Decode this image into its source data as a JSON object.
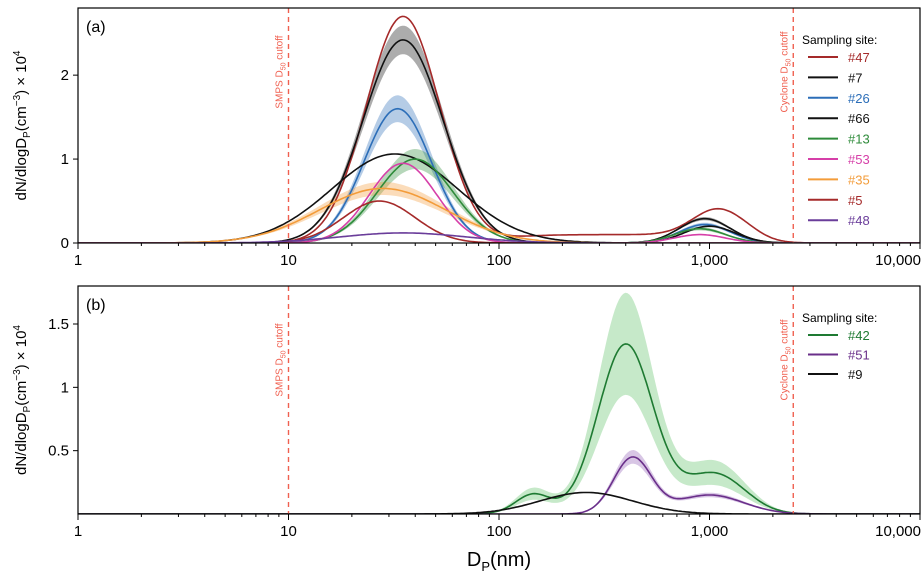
{
  "chart_data": [
    {
      "type": "line",
      "panel": "(a)",
      "xscale": "log",
      "xlim": [
        1,
        10000
      ],
      "ylim": [
        0,
        2.8
      ],
      "xticks": [
        1,
        10,
        100,
        1000,
        10000
      ],
      "xtick_labels": [
        "1",
        "10",
        "100",
        "1,000",
        "10,000"
      ],
      "yticks": [
        0,
        1,
        2
      ],
      "ytick_labels": [
        "0",
        "1",
        "2"
      ],
      "ylabel": "dN/dlogD_P(cm^-3) × 10^4",
      "ylabel_parts": {
        "a": "dN",
        "b": "/",
        "c": "dlogD",
        "d": "P",
        "e": "(cm",
        "f": "−3",
        "g": ")",
        "h": "×",
        "i": "10",
        "j": "4"
      },
      "cutoff_lines": [
        {
          "x": 10,
          "label_main": "SMPS D",
          "label_sub": "50",
          "label_tail": " cutoff",
          "color": "#f06050"
        },
        {
          "x": 2500,
          "label_main": "Cyclone D",
          "label_sub": "50",
          "label_tail": " cutoff",
          "color": "#f06050"
        }
      ],
      "legend_title": "Sampling site:",
      "legend_position": "right",
      "series": [
        {
          "name": "#47",
          "color": "#a52a2a",
          "modes": [
            [
              2.7,
              35,
              0.175
            ],
            [
              0.31,
              1100,
              0.12
            ]
          ],
          "background": 0.1,
          "band": 0
        },
        {
          "name": "#7",
          "color": "#111111",
          "modes": [
            [
              2.42,
              35,
              0.19
            ],
            [
              0.29,
              950,
              0.12
            ]
          ],
          "background": 0,
          "band": 0.07
        },
        {
          "name": "#26",
          "color": "#2c6eb8",
          "modes": [
            [
              1.6,
              33,
              0.16
            ],
            [
              0.22,
              950,
              0.12
            ]
          ],
          "background": 0,
          "band": 0.1
        },
        {
          "name": "#66",
          "color": "#111111",
          "modes": [
            [
              1.06,
              32,
              0.3
            ],
            [
              0.2,
              1000,
              0.12
            ]
          ],
          "background": 0,
          "band": 0
        },
        {
          "name": "#13",
          "color": "#2e8b3a",
          "modes": [
            [
              1.0,
              40,
              0.18
            ],
            [
              0.17,
              900,
              0.12
            ]
          ],
          "background": 0,
          "band": 0.12
        },
        {
          "name": "#53",
          "color": "#d63fa8",
          "modes": [
            [
              0.95,
              35,
              0.16
            ],
            [
              0.1,
              900,
              0.12
            ]
          ],
          "background": 0,
          "band": 0
        },
        {
          "name": "#35",
          "color": "#f39c3a",
          "modes": [
            [
              0.65,
              28,
              0.3
            ]
          ],
          "background": 0,
          "band": 0.12
        },
        {
          "name": "#5",
          "color": "#a52a2a",
          "modes": [
            [
              0.5,
              27,
              0.17
            ]
          ],
          "background": 0,
          "band": 0
        },
        {
          "name": "#48",
          "color": "#6a3d9a",
          "modes": [
            [
              0.12,
              35,
              0.3
            ]
          ],
          "background": 0,
          "band": 0.06
        }
      ]
    },
    {
      "type": "line",
      "panel": "(b)",
      "xscale": "log",
      "xlim": [
        1,
        10000
      ],
      "ylim": [
        0,
        1.8
      ],
      "xticks": [
        1,
        10,
        100,
        1000,
        10000
      ],
      "xtick_labels": [
        "1",
        "10",
        "100",
        "1,000",
        "10,000"
      ],
      "yticks": [
        0.5,
        1,
        1.5
      ],
      "ytick_labels": [
        "0.5",
        "1",
        "1.5"
      ],
      "xlabel_main": "D",
      "xlabel_sub": "P",
      "xlabel_tail": "(nm)",
      "ylabel": "dN/dlogD_P(cm^-3) × 10^4",
      "ylabel_parts": {
        "a": "dN",
        "b": "/",
        "c": "dlogD",
        "d": "P",
        "e": "(cm",
        "f": "−3",
        "g": ")",
        "h": "×",
        "i": "10",
        "j": "4"
      },
      "cutoff_lines": [
        {
          "x": 10,
          "label_main": "SMPS D",
          "label_sub": "50",
          "label_tail": " cutoff",
          "color": "#f06050"
        },
        {
          "x": 2500,
          "label_main": "Cyclone D",
          "label_sub": "50",
          "label_tail": " cutoff",
          "color": "#f06050"
        }
      ],
      "legend_title": "Sampling site:",
      "legend_position": "top-right",
      "series": [
        {
          "name": "#42",
          "color": "#1e7a32",
          "modes": [
            [
              1.32,
              400,
              0.13
            ],
            [
              0.14,
              145,
              0.08
            ],
            [
              0.3,
              1050,
              0.14
            ]
          ],
          "background": 0.02,
          "band": 0.3,
          "bandcolor": "#5cbf63"
        },
        {
          "name": "#51",
          "color": "#6a2f8a",
          "modes": [
            [
              0.44,
              430,
              0.09
            ],
            [
              0.15,
              1000,
              0.16
            ]
          ],
          "background": 0,
          "band": 0.12,
          "bandcolor": "#8e5bb5"
        },
        {
          "name": "#9",
          "color": "#111111",
          "modes": [
            [
              0.17,
              260,
              0.22
            ]
          ],
          "background": 0,
          "band": 0.03,
          "bandcolor": "#999999"
        }
      ]
    }
  ]
}
